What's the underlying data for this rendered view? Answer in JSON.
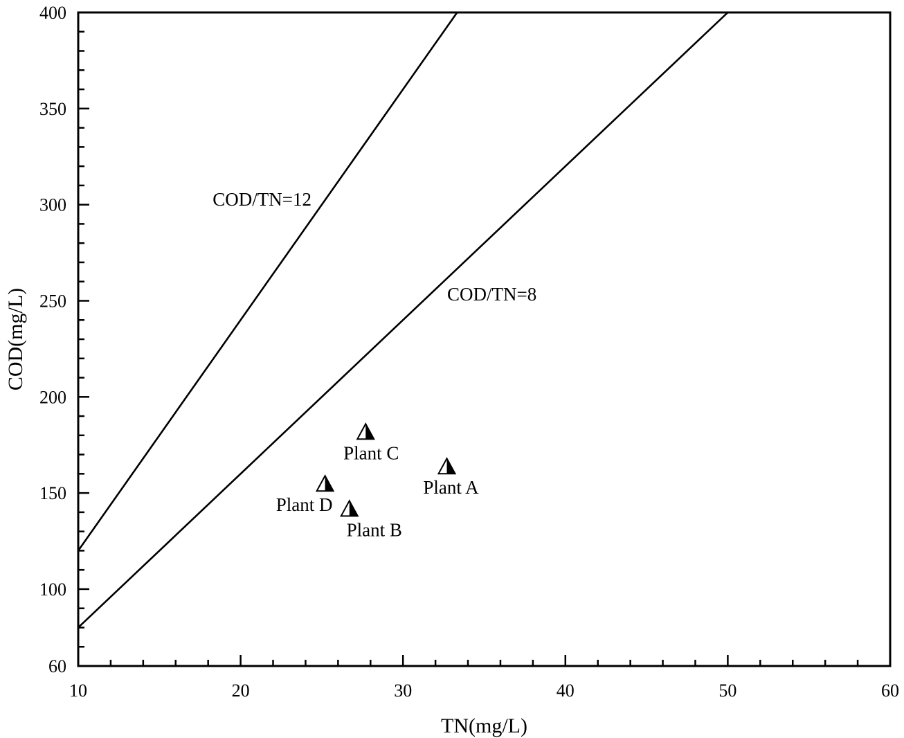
{
  "chart_data": {
    "type": "scatter",
    "xlabel": "TN(mg/L)",
    "ylabel": "COD(mg/L)",
    "xlim": [
      10,
      60
    ],
    "ylim": [
      60,
      400
    ],
    "x_ticks": [
      10,
      20,
      30,
      40,
      50,
      60
    ],
    "y_ticks": [
      60,
      100,
      150,
      200,
      250,
      300,
      350,
      400
    ],
    "grid": false,
    "marker": "half-filled-triangle",
    "points": [
      {
        "name": "Plant A",
        "x": 32.7,
        "y": 164
      },
      {
        "name": "Plant B",
        "x": 26.7,
        "y": 142
      },
      {
        "name": "Plant C",
        "x": 27.7,
        "y": 182
      },
      {
        "name": "Plant D",
        "x": 25.2,
        "y": 155
      }
    ],
    "reference_lines": [
      {
        "label": "COD/TN=12",
        "ratio": 12
      },
      {
        "label": "COD/TN=8",
        "ratio": 8
      }
    ]
  }
}
